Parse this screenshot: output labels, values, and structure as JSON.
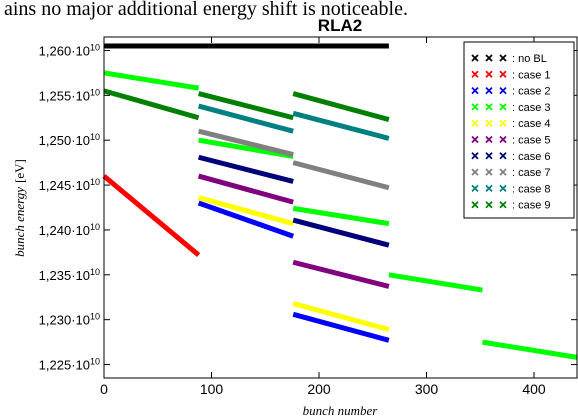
{
  "header_text": "ains no major additional energy shift is noticeable.",
  "chart_data": {
    "type": "line",
    "title": "RLA2",
    "xlabel": "bunch number",
    "ylabel_main": "bunch energy",
    "ylabel_unit": "[eV]",
    "xlim": [
      0,
      440
    ],
    "ylim": [
      12235000000.0,
      12615000000.0
    ],
    "x_ticks": [
      0,
      100,
      200,
      300,
      400
    ],
    "x_tick_labels": [
      "0",
      "100",
      "200",
      "300",
      "400"
    ],
    "y_ticks": [
      12250000000.0,
      12300000000.0,
      12350000000.0,
      12400000000.0,
      12450000000.0,
      12500000000.0,
      12550000000.0,
      12600000000.0
    ],
    "y_tick_mantissas": [
      "1,225",
      "1,230",
      "1,235",
      "1,240",
      "1,245",
      "1,250",
      "1,255",
      "1,260"
    ],
    "y_tick_exponent_base": "10",
    "y_tick_exponent": "10",
    "grid": false,
    "legend_position": "top-right",
    "series": [
      {
        "name": ": no BL",
        "color": "#000000",
        "segments": [
          [
            [
              0,
              12605000000.0
            ],
            [
              265,
              12605000000.0
            ]
          ]
        ]
      },
      {
        "name": ": case 1",
        "color": "#ff0000",
        "segments": [
          [
            [
              0,
              12460000000.0
            ],
            [
              88,
              12372000000.0
            ]
          ]
        ]
      },
      {
        "name": ": case 2",
        "color": "#0000ff",
        "segments": [
          [
            [
              88,
              12430000000.0
            ],
            [
              176,
              12393000000.0
            ]
          ],
          [
            [
              176,
              12306000000.0
            ],
            [
              265,
              12277000000.0
            ]
          ]
        ]
      },
      {
        "name": ": case 3",
        "color": "#00ff00",
        "segments": [
          [
            [
              0,
              12575000000.0
            ],
            [
              88,
              12558000000.0
            ]
          ],
          [
            [
              88,
              12500000000.0
            ],
            [
              176,
              12482000000.0
            ]
          ],
          [
            [
              176,
              12424000000.0
            ],
            [
              265,
              12407000000.0
            ]
          ],
          [
            [
              265,
              12350000000.0
            ],
            [
              352,
              12333000000.0
            ]
          ],
          [
            [
              352,
              12275000000.0
            ],
            [
              440,
              12258000000.0
            ]
          ]
        ]
      },
      {
        "name": ": case 4",
        "color": "#ffff00",
        "segments": [
          [
            [
              88,
              12436000000.0
            ],
            [
              176,
              12407000000.0
            ]
          ],
          [
            [
              176,
              12318000000.0
            ],
            [
              265,
              12289000000.0
            ]
          ]
        ]
      },
      {
        "name": ": case 5",
        "color": "#800080",
        "segments": [
          [
            [
              88,
              12460000000.0
            ],
            [
              176,
              12431000000.0
            ]
          ],
          [
            [
              176,
              12364000000.0
            ],
            [
              265,
              12337000000.0
            ]
          ]
        ]
      },
      {
        "name": ": case 6",
        "color": "#00007a",
        "segments": [
          [
            [
              88,
              12481000000.0
            ],
            [
              176,
              12454000000.0
            ]
          ],
          [
            [
              176,
              12411000000.0
            ],
            [
              265,
              12383000000.0
            ]
          ]
        ]
      },
      {
        "name": ": case 7",
        "color": "#808080",
        "segments": [
          [
            [
              88,
              12510000000.0
            ],
            [
              176,
              12484000000.0
            ]
          ],
          [
            [
              176,
              12475000000.0
            ],
            [
              265,
              12447000000.0
            ]
          ]
        ]
      },
      {
        "name": ": case 8",
        "color": "#008080",
        "segments": [
          [
            [
              88,
              12538000000.0
            ],
            [
              176,
              12510000000.0
            ]
          ],
          [
            [
              176,
              12530000000.0
            ],
            [
              265,
              12502000000.0
            ]
          ]
        ]
      },
      {
        "name": ": case 9",
        "color": "#008000",
        "segments": [
          [
            [
              0,
              12555000000.0
            ],
            [
              88,
              12525000000.0
            ]
          ],
          [
            [
              88,
              12552000000.0
            ],
            [
              176,
              12525000000.0
            ]
          ],
          [
            [
              176,
              12552000000.0
            ],
            [
              265,
              12523000000.0
            ]
          ]
        ]
      }
    ]
  }
}
